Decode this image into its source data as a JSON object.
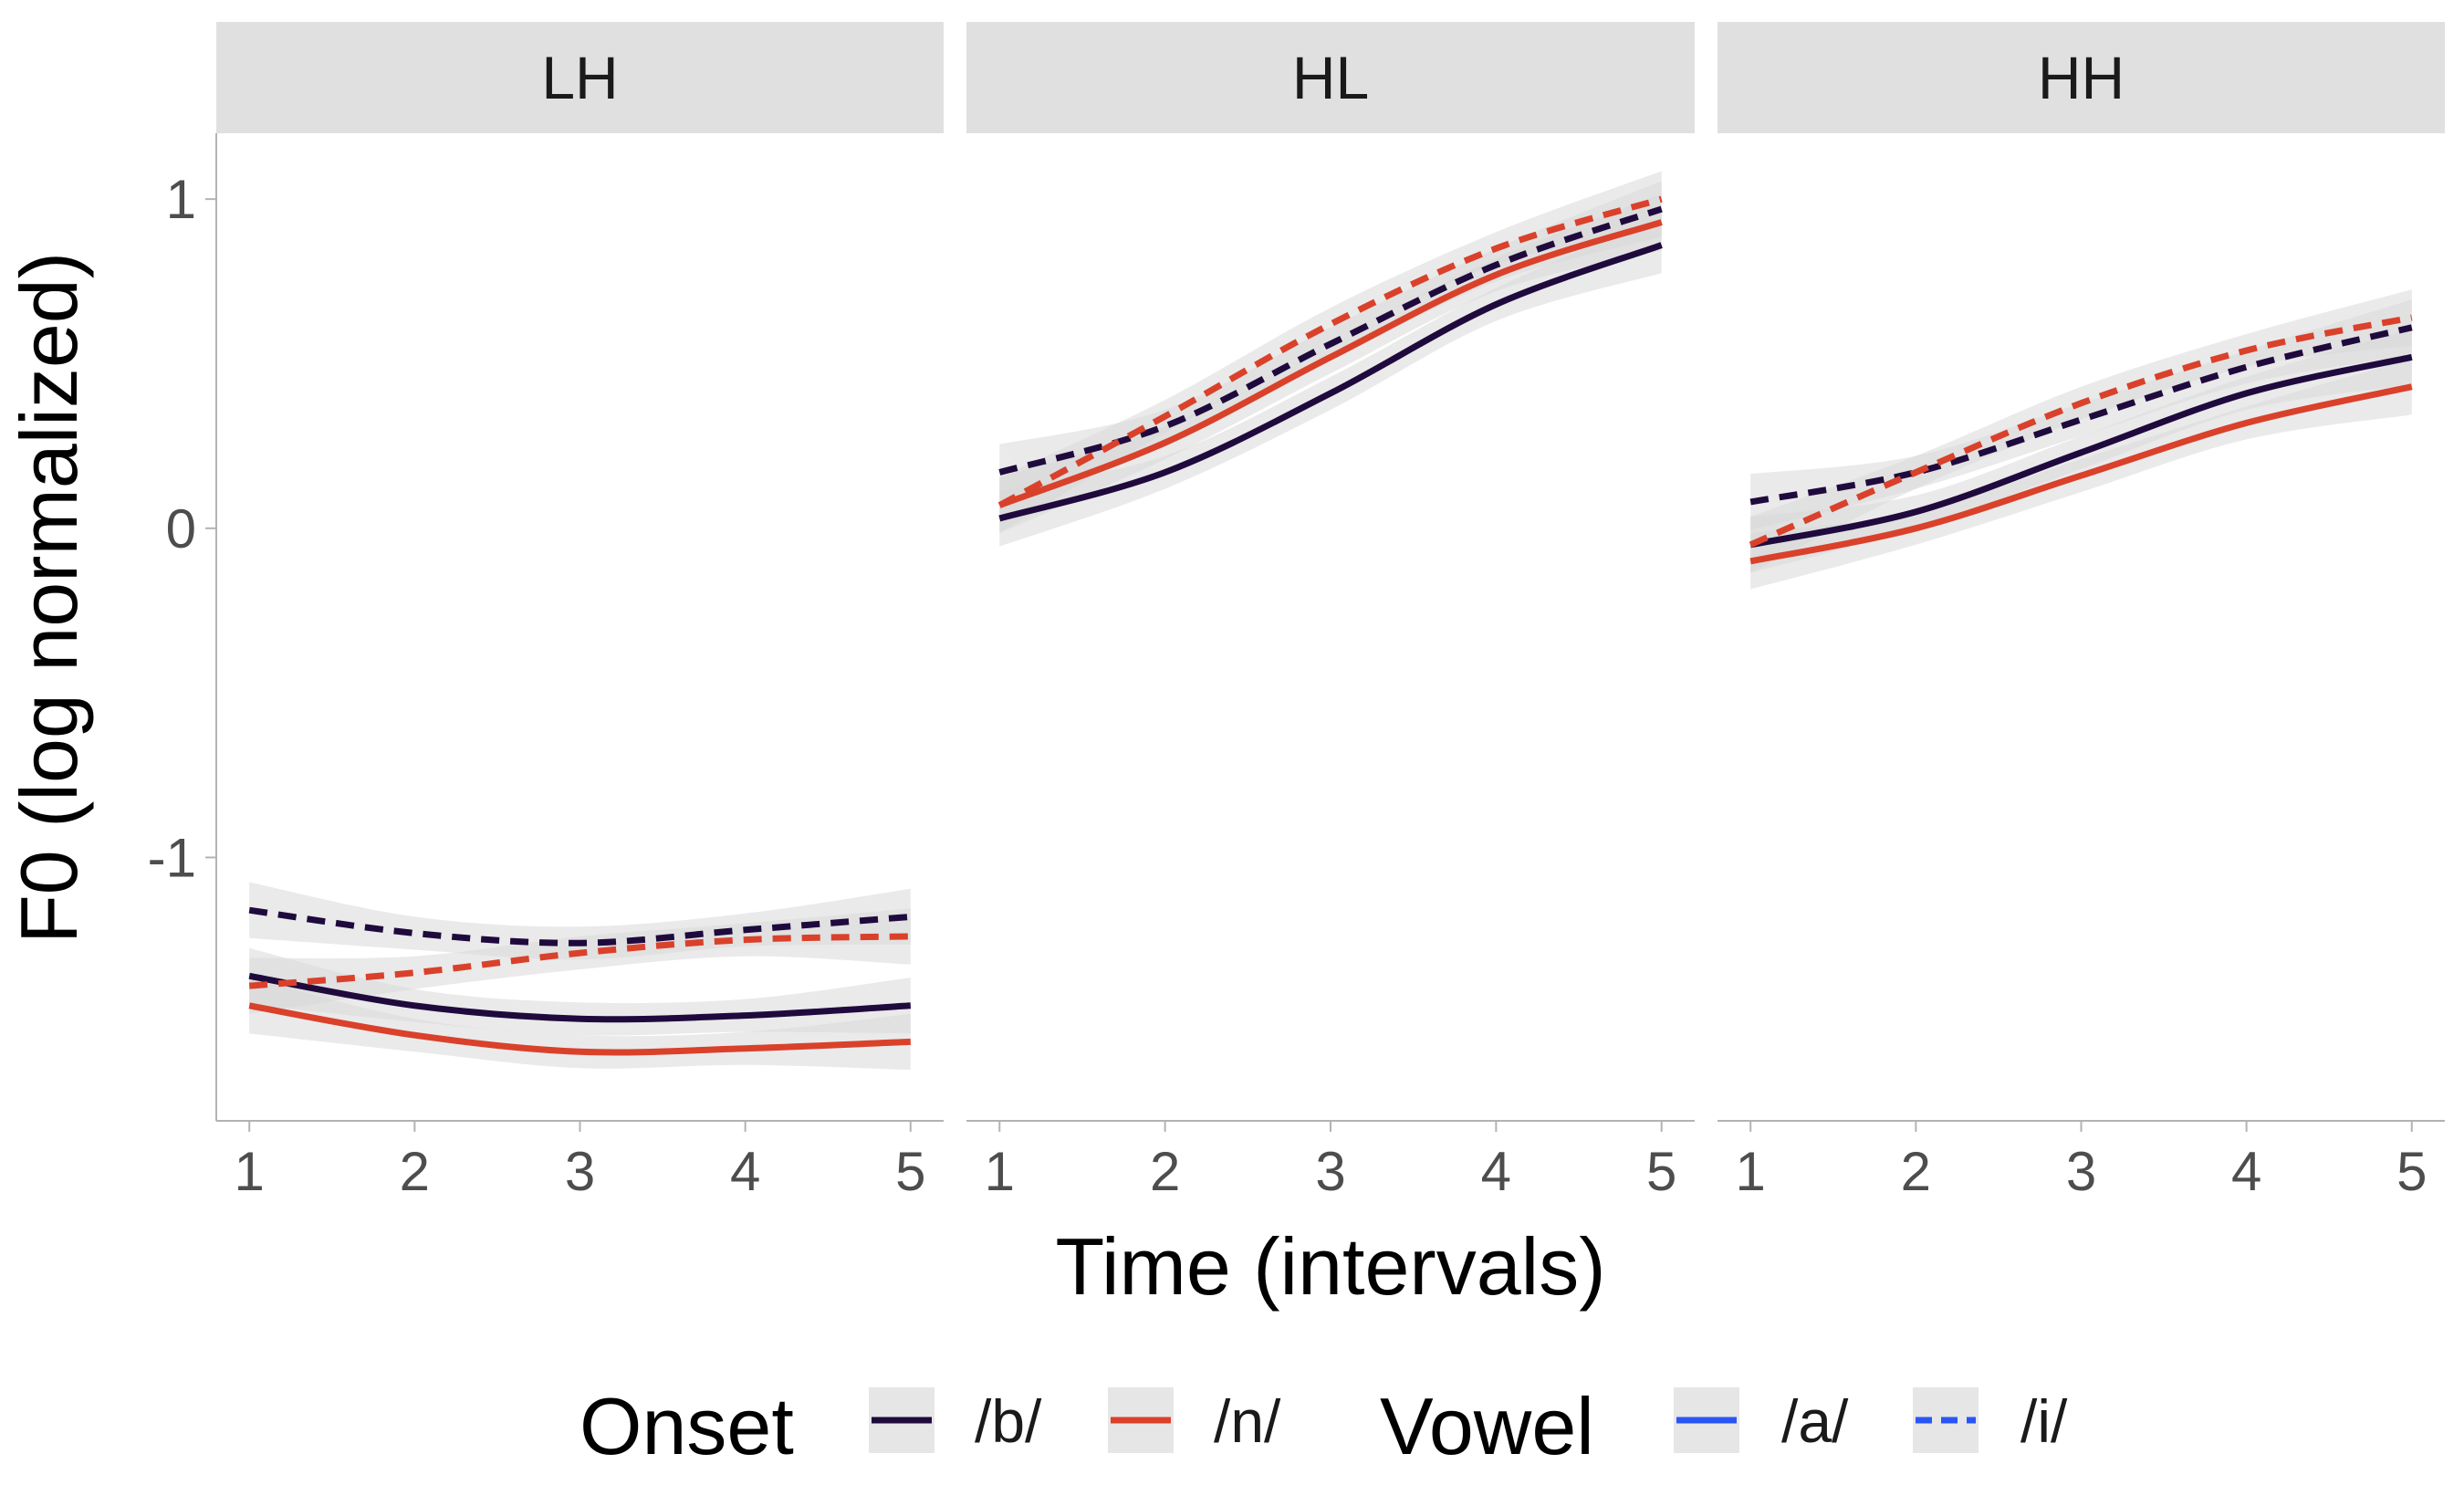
{
  "chart_data": {
    "type": "line",
    "facet_labels": [
      "LH",
      "HL",
      "HH"
    ],
    "xlabel": "Time (intervals)",
    "ylabel": "F0 (log normalized)",
    "x_ticks": [
      "1",
      "2",
      "3",
      "4",
      "5"
    ],
    "y_ticks": [
      "1",
      "0",
      "-1"
    ],
    "xlim": [
      0.8,
      5.2
    ],
    "ylim": [
      -1.8,
      1.2
    ],
    "grid": false,
    "legend_position": "bottom",
    "confidence_bands": true,
    "x": [
      1,
      2,
      3,
      4,
      5
    ],
    "colors": {
      "onset_b": "#1f0a3d",
      "onset_n": "#d9412b",
      "vowel_key": "#2a55f5",
      "band": "#d9d9d9",
      "strip": "#e0e0e0"
    },
    "legend": {
      "onset_title": "Onset",
      "onset_items": [
        "/b/",
        "/n/"
      ],
      "vowel_title": "Vowel",
      "vowel_items": [
        "/a/",
        "/i/"
      ]
    },
    "facets": [
      {
        "label": "LH",
        "series": [
          {
            "onset": "/b/",
            "vowel": "/a/",
            "values": [
              -1.36,
              -1.45,
              -1.49,
              -1.48,
              -1.45
            ]
          },
          {
            "onset": "/n/",
            "vowel": "/a/",
            "values": [
              -1.45,
              -1.54,
              -1.59,
              -1.58,
              -1.56
            ]
          },
          {
            "onset": "/b/",
            "vowel": "/i/",
            "values": [
              -1.16,
              -1.23,
              -1.26,
              -1.22,
              -1.18
            ]
          },
          {
            "onset": "/n/",
            "vowel": "/i/",
            "values": [
              -1.39,
              -1.35,
              -1.29,
              -1.25,
              -1.24
            ]
          }
        ]
      },
      {
        "label": "HL",
        "series": [
          {
            "onset": "/b/",
            "vowel": "/a/",
            "values": [
              0.03,
              0.17,
              0.41,
              0.68,
              0.86
            ]
          },
          {
            "onset": "/n/",
            "vowel": "/a/",
            "values": [
              0.07,
              0.26,
              0.52,
              0.77,
              0.93
            ]
          },
          {
            "onset": "/b/",
            "vowel": "/i/",
            "values": [
              0.17,
              0.31,
              0.56,
              0.8,
              0.97
            ]
          },
          {
            "onset": "/n/",
            "vowel": "/i/",
            "values": [
              0.07,
              0.34,
              0.62,
              0.85,
              1.0
            ]
          }
        ]
      },
      {
        "label": "HH",
        "series": [
          {
            "onset": "/b/",
            "vowel": "/a/",
            "values": [
              -0.05,
              0.05,
              0.23,
              0.41,
              0.52
            ]
          },
          {
            "onset": "/n/",
            "vowel": "/a/",
            "values": [
              -0.1,
              0.0,
              0.16,
              0.32,
              0.43
            ]
          },
          {
            "onset": "/b/",
            "vowel": "/i/",
            "values": [
              0.08,
              0.17,
              0.33,
              0.49,
              0.61
            ]
          },
          {
            "onset": "/n/",
            "vowel": "/i/",
            "values": [
              -0.05,
              0.17,
              0.38,
              0.54,
              0.64
            ]
          }
        ]
      }
    ]
  }
}
